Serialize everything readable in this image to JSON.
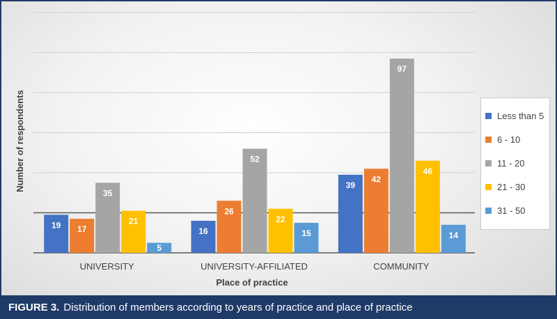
{
  "chart_data": {
    "type": "bar",
    "categories": [
      "UNIVERSITY",
      "UNIVERSITY-AFFILIATED",
      "COMMUNITY"
    ],
    "series": [
      {
        "name": "Less than 5",
        "color": "#4472c4",
        "values": [
          19,
          16,
          39
        ]
      },
      {
        "name": "6 - 10",
        "color": "#ed7d31",
        "values": [
          17,
          26,
          42
        ]
      },
      {
        "name": "11 - 20",
        "color": "#a5a5a5",
        "values": [
          35,
          52,
          97
        ]
      },
      {
        "name": "21 - 30",
        "color": "#ffc000",
        "values": [
          21,
          22,
          46
        ]
      },
      {
        "name": "31 - 50",
        "color": "#5b9bd5",
        "values": [
          5,
          15,
          14
        ]
      }
    ],
    "xlabel": "Place of practice",
    "ylabel": "Number of respondents",
    "ylim": [
      0,
      120
    ],
    "grid": true,
    "legend_position": "right"
  },
  "caption": {
    "label": "FIGURE 3.",
    "text": "Distribution of members according to years of practice and place of practice"
  }
}
